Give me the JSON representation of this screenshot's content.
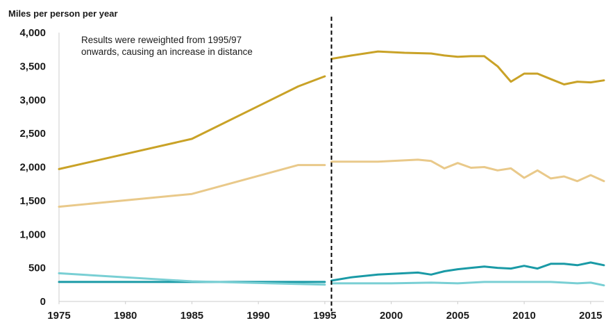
{
  "chart_data": {
    "type": "line",
    "title": "",
    "ylabel": "Miles per person per year",
    "xlabel": "",
    "xlim": [
      1975,
      2016
    ],
    "ylim": [
      0,
      4000
    ],
    "x_ticks": [
      "1975",
      "1980",
      "1985",
      "1990",
      "1995",
      "2000",
      "2005",
      "2010",
      "2015"
    ],
    "y_ticks": [
      "0",
      "500",
      "1,000",
      "1,500",
      "2,000",
      "2,500",
      "3,000",
      "3,500",
      "4,000"
    ],
    "grid": false,
    "legend": "none",
    "break_year": 1995.5,
    "annotation": [
      "Results were reweighted from 1995/97",
      "onwards, causing an increase in distance"
    ],
    "colors": {
      "axis": "#cccccc",
      "text": "#1a1a1a",
      "divider": "#000000"
    },
    "series": [
      {
        "color": "#c9a227",
        "segments": [
          {
            "x": [
              1975,
              1985,
              1993,
              1995
            ],
            "y": [
              1970,
              2420,
              3200,
              3350
            ]
          },
          {
            "x": [
              1995.5,
              1997,
              1999,
              2001,
              2003,
              2004,
              2005,
              2006,
              2007,
              2008,
              2009,
              2010,
              2011,
              2012,
              2013,
              2014,
              2015,
              2016
            ],
            "y": [
              3610,
              3660,
              3720,
              3700,
              3690,
              3660,
              3640,
              3650,
              3650,
              3500,
              3270,
              3390,
              3390,
              3310,
              3230,
              3270,
              3260,
              3290
            ]
          }
        ]
      },
      {
        "color": "#e9c98a",
        "segments": [
          {
            "x": [
              1975,
              1985,
              1993,
              1995
            ],
            "y": [
              1410,
              1600,
              2030,
              2030
            ]
          },
          {
            "x": [
              1995.5,
              1999,
              2002,
              2003,
              2004,
              2005,
              2006,
              2007,
              2008,
              2009,
              2010,
              2011,
              2012,
              2013,
              2014,
              2015,
              2016
            ],
            "y": [
              2080,
              2080,
              2110,
              2090,
              1980,
              2060,
              1990,
              2000,
              1950,
              1980,
              1840,
              1950,
              1830,
              1860,
              1790,
              1880,
              1790
            ]
          }
        ]
      },
      {
        "color": "#1a9aa6",
        "segments": [
          {
            "x": [
              1975,
              1985,
              1995
            ],
            "y": [
              290,
              290,
              290
            ]
          },
          {
            "x": [
              1995.5,
              1997,
              1999,
              2002,
              2003,
              2004,
              2005,
              2006,
              2007,
              2008,
              2009,
              2010,
              2011,
              2012,
              2013,
              2014,
              2015,
              2016
            ],
            "y": [
              310,
              360,
              400,
              430,
              400,
              450,
              480,
              500,
              520,
              500,
              490,
              530,
              490,
              560,
              560,
              540,
              580,
              540
            ]
          }
        ]
      },
      {
        "color": "#79cfd4",
        "segments": [
          {
            "x": [
              1975,
              1985,
              1995
            ],
            "y": [
              420,
              300,
              250
            ]
          },
          {
            "x": [
              1995.5,
              2000,
              2003,
              2005,
              2007,
              2010,
              2012,
              2014,
              2015,
              2016
            ],
            "y": [
              270,
              270,
              280,
              270,
              290,
              290,
              290,
              270,
              280,
              240
            ]
          }
        ]
      }
    ]
  }
}
